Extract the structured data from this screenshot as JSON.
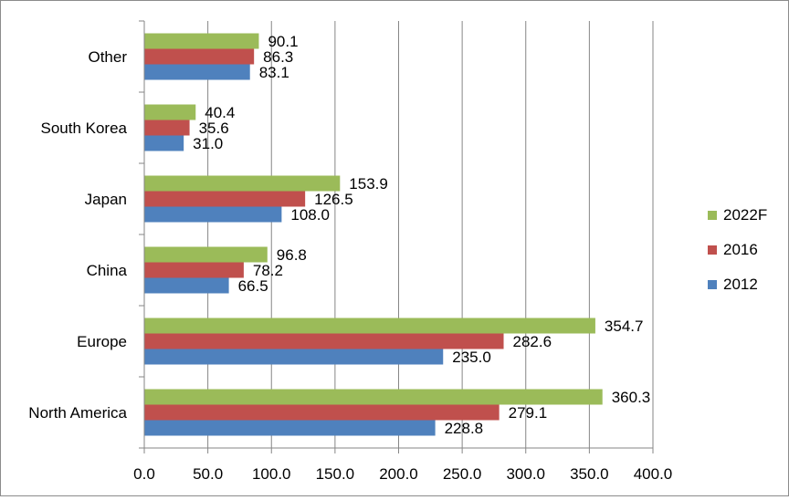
{
  "chart_data": {
    "type": "bar",
    "orientation": "horizontal",
    "title": "",
    "xlabel": "",
    "ylabel": "",
    "xlim": [
      0,
      400
    ],
    "x_ticks": [
      0,
      50,
      100,
      150,
      200,
      250,
      300,
      350,
      400
    ],
    "x_tick_labels": [
      "0.0",
      "50.0",
      "100.0",
      "150.0",
      "200.0",
      "250.0",
      "300.0",
      "350.0",
      "400.0"
    ],
    "grid": "vertical major gridlines",
    "legend_position": "right",
    "categories": [
      "North America",
      "Europe",
      "China",
      "Japan",
      "South Korea",
      "Other"
    ],
    "series": [
      {
        "name": "2012",
        "color": "#4f81bd",
        "values": [
          228.8,
          235.0,
          66.5,
          108.0,
          31.0,
          83.1
        ],
        "labels": [
          "228.8",
          "235.0",
          "66.5",
          "108.0",
          "31.0",
          "83.1"
        ]
      },
      {
        "name": "2016",
        "color": "#c0504d",
        "values": [
          279.1,
          282.6,
          78.2,
          126.5,
          35.6,
          86.3
        ],
        "labels": [
          "279.1",
          "282.6",
          "78.2",
          "126.5",
          "35.6",
          "86.3"
        ]
      },
      {
        "name": "2022F",
        "color": "#9bbb59",
        "values": [
          360.3,
          354.7,
          96.8,
          153.9,
          40.4,
          90.1
        ],
        "labels": [
          "360.3",
          "354.7",
          "96.8",
          "153.9",
          "40.4",
          "90.1"
        ]
      }
    ],
    "legend_order": [
      "2022F",
      "2016",
      "2012"
    ]
  }
}
